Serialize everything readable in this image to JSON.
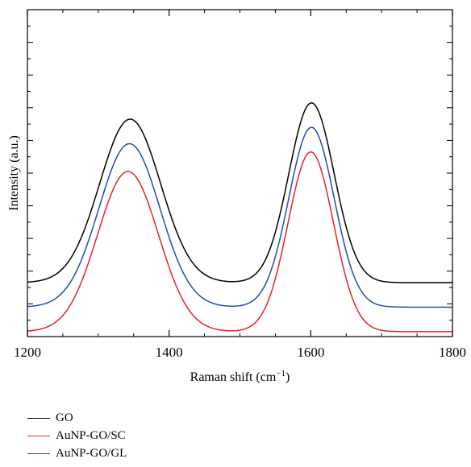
{
  "chart_data": {
    "type": "line",
    "xlabel": "Raman shift (cm",
    "xlabel_sup": "−1",
    "xlabel_end": ")",
    "ylabel": "Intensity (a.u.)",
    "xlim": [
      1200,
      1800
    ],
    "ylim": [
      0,
      1.0
    ],
    "x_ticks": [
      1200,
      1400,
      1600,
      1800
    ],
    "x_minor_step": 50,
    "y_ticks_shown": false,
    "grid": false,
    "legend_position": "below-left",
    "series": [
      {
        "name": "GO",
        "color": "#000000",
        "baseline": 0.165,
        "peaks": [
          {
            "center": 1345,
            "height": 0.5,
            "width": 43
          },
          {
            "center": 1601,
            "height": 0.55,
            "width": 32
          }
        ]
      },
      {
        "name": "AuNP-GO/SC",
        "color": "#e8202a",
        "baseline": 0.015,
        "peaks": [
          {
            "center": 1342,
            "height": 0.49,
            "width": 43
          },
          {
            "center": 1600,
            "height": 0.55,
            "width": 32
          }
        ]
      },
      {
        "name": "AuNP-GO/GL",
        "color": "#1f4fa3",
        "baseline": 0.09,
        "peaks": [
          {
            "center": 1344,
            "height": 0.5,
            "width": 43
          },
          {
            "center": 1601,
            "height": 0.55,
            "width": 32
          }
        ]
      }
    ]
  }
}
